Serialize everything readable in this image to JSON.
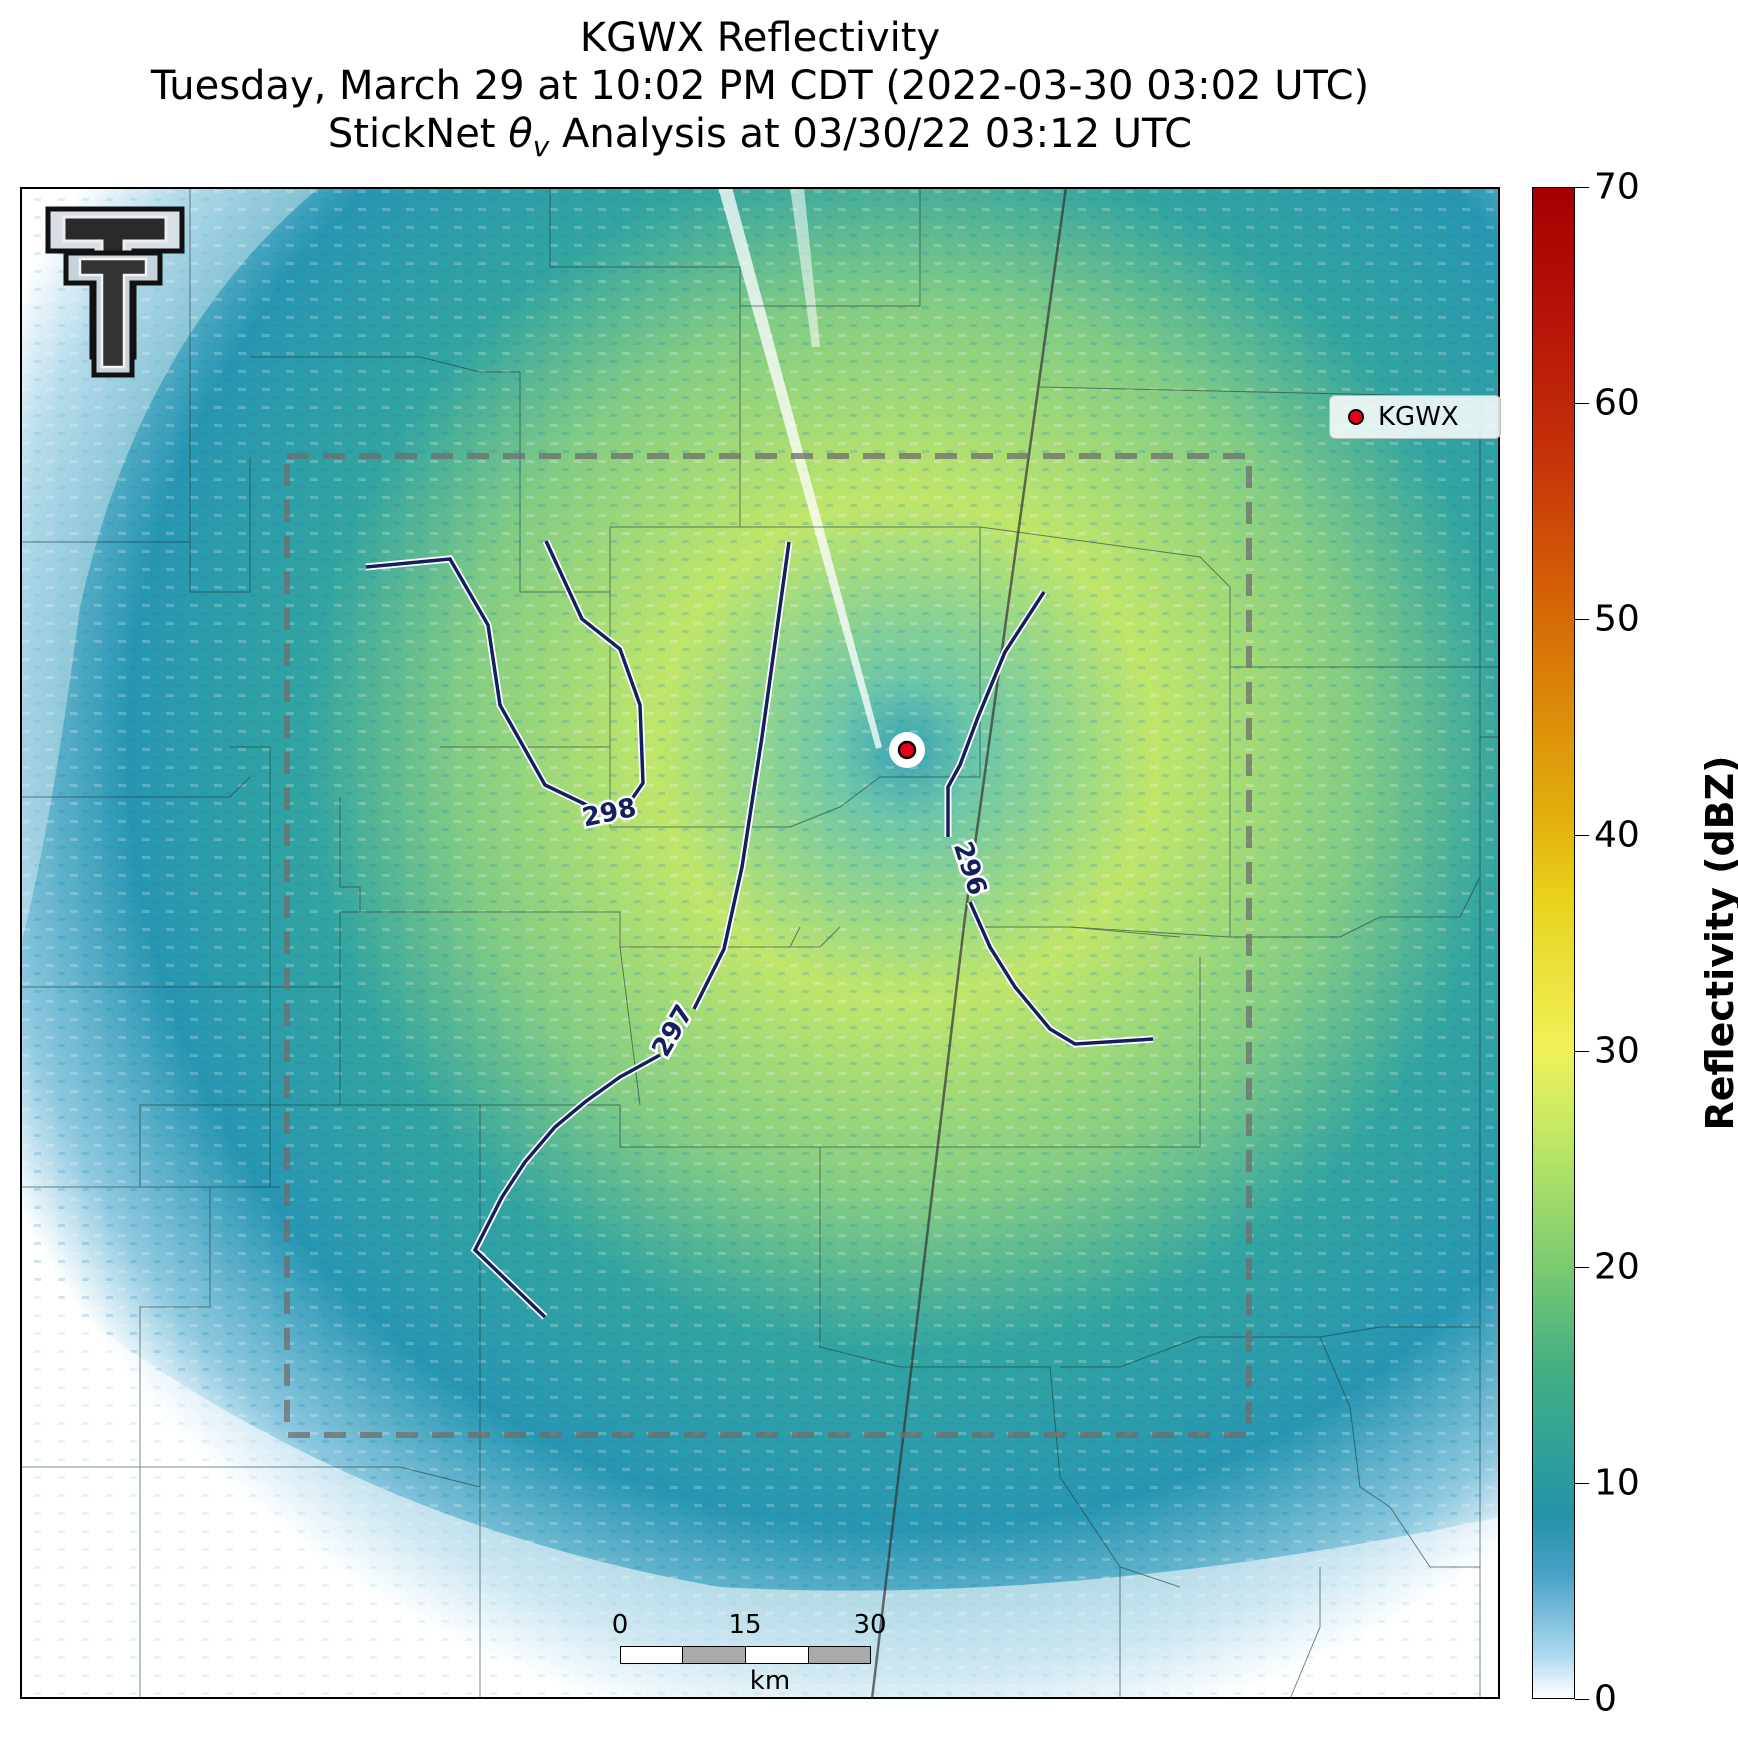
{
  "header": {
    "line1": "KGWX Reflectivity",
    "line2": "Tuesday, March 29 at 10:02 PM CDT (2022-03-30 03:02 UTC)",
    "line3": "StickNet θv Analysis at 03/30/22 03:12 UTC"
  },
  "map": {
    "radar_site": "KGWX",
    "legend_label": "KGWX",
    "marker_color": "#e8001a",
    "contour_color": "#14205e",
    "contours": [
      {
        "label": "298"
      },
      {
        "label": "297"
      },
      {
        "label": "296"
      }
    ],
    "logo": "texas-tech-double-t-logo",
    "analysis_box": "dashed-gray-rectangle"
  },
  "scalebar": {
    "ticks": [
      "0",
      "15",
      "30"
    ],
    "unit": "km"
  },
  "colorbar": {
    "label": "Reflectivity (dBZ)",
    "ticks": [
      "0",
      "10",
      "20",
      "30",
      "40",
      "50",
      "60",
      "70"
    ],
    "min": 0,
    "max": 70,
    "colors": {
      "low": "#ffffff",
      "mid": "#2592a8",
      "high": "#a50000"
    }
  }
}
